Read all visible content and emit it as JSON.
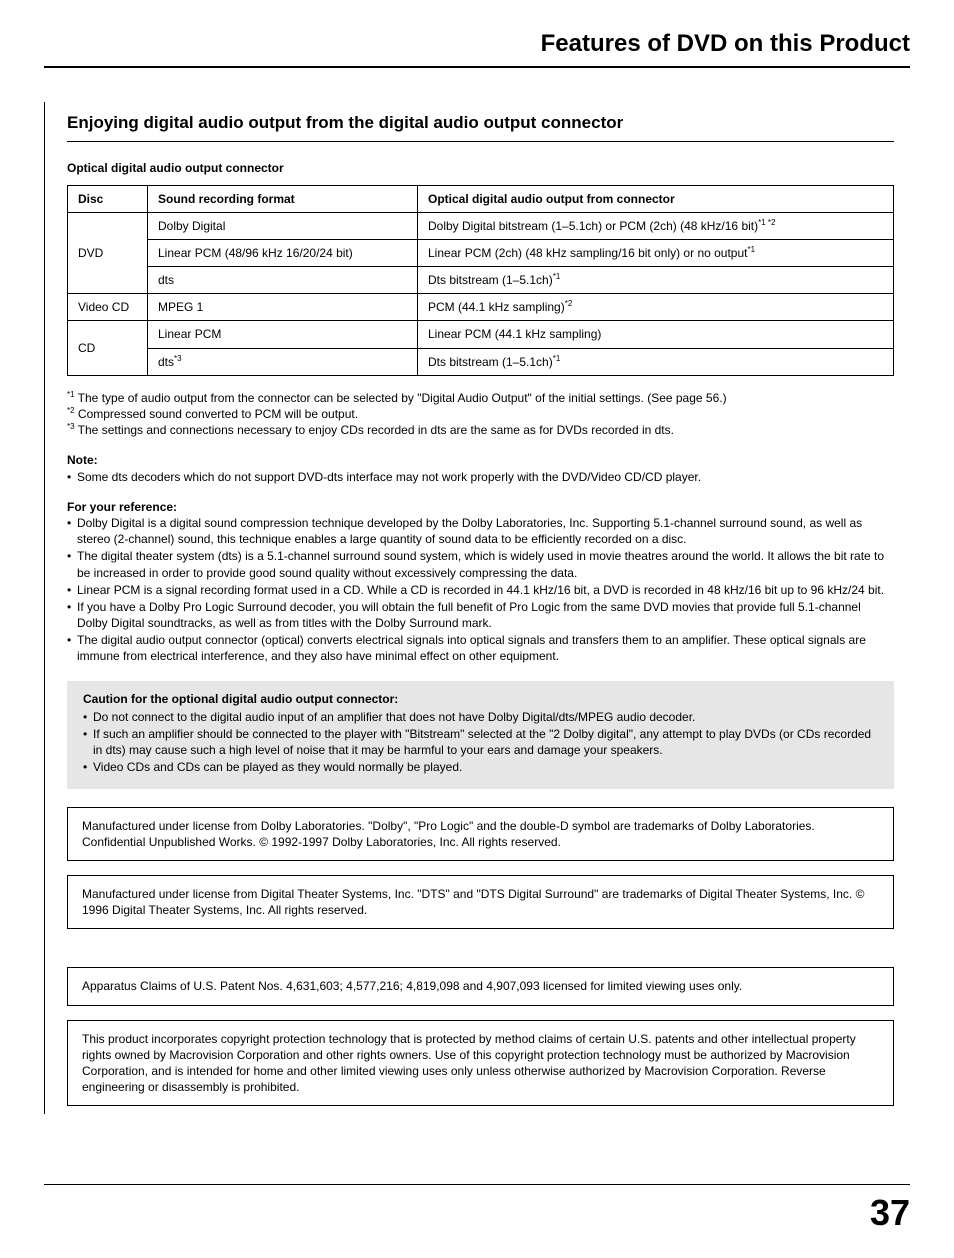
{
  "pageTitle": "Features of DVD on this Product",
  "sectionHeading": "Enjoying digital audio output from the digital audio output connector",
  "tableTitle": "Optical digital audio output connector",
  "table": {
    "headers": [
      "Disc",
      "Sound recording format",
      "Optical digital audio output from connector"
    ],
    "groups": [
      {
        "disc": "DVD",
        "rows": [
          {
            "fmt": "Dolby Digital",
            "out": "Dolby Digital bitstream (1–5.1ch) or PCM (2ch) (48 kHz/16 bit)",
            "outSup": "*1 *2"
          },
          {
            "fmt": "Linear PCM (48/96 kHz 16/20/24 bit)",
            "out": "Linear PCM (2ch) (48 kHz sampling/16 bit only) or no output",
            "outSup": "*1"
          },
          {
            "fmt": "dts",
            "out": "Dts bitstream (1–5.1ch)",
            "outSup": "*1"
          }
        ]
      },
      {
        "disc": "Video CD",
        "rows": [
          {
            "fmt": "MPEG 1",
            "out": "PCM (44.1 kHz sampling)",
            "outSup": "*2"
          }
        ]
      },
      {
        "disc": "CD",
        "rows": [
          {
            "fmt": "Linear PCM",
            "out": "Linear PCM (44.1 kHz sampling)",
            "outSup": ""
          },
          {
            "fmt": "dts",
            "fmtSup": "*3",
            "out": "Dts bitstream (1–5.1ch)",
            "outSup": "*1"
          }
        ]
      }
    ]
  },
  "footnotes": [
    {
      "sup": "*1",
      "text": " The type of audio output from the connector can be selected by \"Digital Audio Output\" of the initial settings. (See page 56.)"
    },
    {
      "sup": "*2",
      "text": " Compressed sound converted to PCM will be output."
    },
    {
      "sup": "*3",
      "text": " The settings and connections necessary to enjoy CDs recorded in dts are the same as for DVDs recorded in dts."
    }
  ],
  "noteHeading": "Note:",
  "noteItems": [
    "Some dts decoders which do not support DVD-dts interface may not work properly with the DVD/Video CD/CD player."
  ],
  "refHeading": "For your reference:",
  "refItems": [
    "Dolby Digital is a digital sound compression technique developed by the Dolby Laboratories, Inc. Supporting 5.1-channel surround sound, as well as stereo (2-channel) sound, this technique enables a large quantity of sound data to be efficiently recorded on a disc.",
    "The digital theater system (dts) is a 5.1-channel surround sound system, which is widely used in movie theatres around the world. It allows the bit rate to be increased in order to provide good sound quality without excessively compressing the data.",
    "Linear PCM is a signal recording format used in a CD. While a CD is recorded in 44.1 kHz/16 bit, a DVD is recorded in 48 kHz/16 bit up to 96 kHz/24 bit.",
    "If you have a Dolby Pro Logic Surround decoder, you will obtain the full benefit of Pro Logic from the same DVD movies that provide full 5.1-channel Dolby Digital soundtracks, as well as from titles with the Dolby Surround mark.",
    "The digital audio output connector (optical) converts electrical signals into optical signals and transfers them to an amplifier. These optical signals are immune from electrical interference, and they also have minimal effect on other equipment."
  ],
  "cautionHeading": "Caution for the optional digital audio output connector:",
  "cautionItems": [
    "Do not connect to the digital audio input of an amplifier that does not have Dolby Digital/dts/MPEG audio decoder.",
    "If such an amplifier should be connected to the player with \"Bitstream\" selected at the \"2 Dolby digital\", any attempt to play DVDs (or CDs recorded in dts) may cause such a high level of noise that it may be harmful to your ears and damage your speakers.",
    "Video CDs and CDs can be played as they would normally be played."
  ],
  "licenseBoxes": [
    "Manufactured under license from Dolby Laboratories. \"Dolby\", \"Pro Logic\" and the double-D symbol are trademarks of Dolby Laboratories. Confidential Unpublished Works. © 1992-1997 Dolby Laboratories, Inc. All rights reserved.",
    "Manufactured under license from Digital Theater Systems, Inc. \"DTS\" and \"DTS Digital Surround\" are trademarks of Digital Theater Systems, Inc. © 1996 Digital Theater Systems, Inc. All rights reserved.",
    "Apparatus Claims of U.S. Patent Nos. 4,631,603; 4,577,216; 4,819,098 and 4,907,093 licensed for limited viewing uses only.",
    "This product incorporates copyright protection technology that is protected by method claims of certain U.S. patents and other intellectual property rights owned by Macrovision Corporation and other rights owners. Use of this copyright protection technology must be authorized by Macrovision Corporation, and is intended for home and other limited viewing uses only unless otherwise authorized by Macrovision Corporation. Reverse engineering or disassembly is prohibited."
  ],
  "licenseGap": 38,
  "pageNumber": "37"
}
